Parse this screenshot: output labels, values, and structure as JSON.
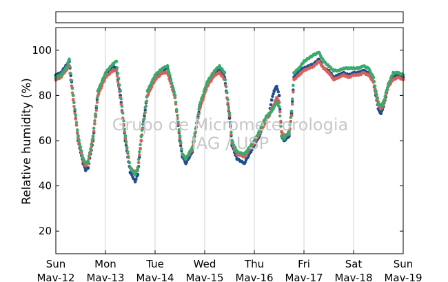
{
  "chart_data": {
    "type": "scatter",
    "title": "",
    "xlabel": "",
    "ylabel": "Relative humidity (%)",
    "ylim": [
      10,
      110
    ],
    "y_ticks": [
      20,
      40,
      60,
      80,
      100
    ],
    "xlim": [
      0,
      7
    ],
    "x_ticks": [
      {
        "x": 0,
        "day": "Sun",
        "date": "Mav-12"
      },
      {
        "x": 1,
        "day": "Mon",
        "date": "Mav-13"
      },
      {
        "x": 2,
        "day": "Tue",
        "date": "Mav-14"
      },
      {
        "x": 3,
        "day": "Wed",
        "date": "Mav-15"
      },
      {
        "x": 4,
        "day": "Thu",
        "date": "Mav-16"
      },
      {
        "x": 5,
        "day": "Fri",
        "date": "Mav-17"
      },
      {
        "x": 6,
        "day": "Sat",
        "date": "Mav-18"
      },
      {
        "x": 7,
        "day": "Sun",
        "date": "Mav-19"
      }
    ],
    "grid": "vertical",
    "legend": "top (empty box)",
    "watermark": [
      "Grupo de Micrometeorologia",
      "IAG / USP"
    ],
    "series": [
      {
        "color": "#1f4e8c",
        "x": [
          0.0,
          0.1,
          0.2,
          0.27,
          0.35,
          0.45,
          0.55,
          0.6,
          0.65,
          0.75,
          0.85,
          1.0,
          1.15,
          1.22,
          1.3,
          1.4,
          1.5,
          1.6,
          1.65,
          1.72,
          1.85,
          2.0,
          2.15,
          2.25,
          2.4,
          2.5,
          2.55,
          2.62,
          2.75,
          2.9,
          3.05,
          3.2,
          3.3,
          3.4,
          3.5,
          3.55,
          3.65,
          3.8,
          4.0,
          4.1,
          4.2,
          4.25,
          4.3,
          4.35,
          4.4,
          4.45,
          4.5,
          4.55,
          4.6,
          4.7,
          4.75,
          4.8,
          4.9,
          5.0,
          5.2,
          5.3,
          5.4,
          5.5,
          5.6,
          5.7,
          5.8,
          5.9,
          6.0,
          6.1,
          6.2,
          6.3,
          6.4,
          6.45,
          6.5,
          6.55,
          6.6,
          6.7,
          6.8,
          6.9,
          7.0
        ],
        "y": [
          89,
          90,
          93,
          95,
          80,
          60,
          50,
          47,
          48,
          60,
          82,
          89,
          93,
          92,
          80,
          60,
          46,
          42,
          45,
          60,
          82,
          88,
          91,
          92,
          80,
          60,
          53,
          50,
          55,
          75,
          85,
          90,
          92,
          88,
          70,
          58,
          52,
          50,
          58,
          62,
          68,
          70,
          72,
          78,
          82,
          84,
          80,
          62,
          60,
          62,
          72,
          88,
          91,
          92,
          94,
          96,
          92,
          91,
          88,
          89,
          90,
          89,
          90,
          90,
          91,
          90,
          86,
          80,
          74,
          72,
          75,
          84,
          88,
          89,
          88
        ]
      },
      {
        "color": "#d9605a",
        "x": [
          0.0,
          0.1,
          0.2,
          0.27,
          0.35,
          0.45,
          0.55,
          0.6,
          0.65,
          0.75,
          0.85,
          1.0,
          1.15,
          1.22,
          1.3,
          1.4,
          1.5,
          1.6,
          1.65,
          1.72,
          1.85,
          2.0,
          2.15,
          2.25,
          2.4,
          2.5,
          2.55,
          2.62,
          2.75,
          2.9,
          3.05,
          3.2,
          3.3,
          3.4,
          3.5,
          3.55,
          3.65,
          3.8,
          4.0,
          4.1,
          4.2,
          4.25,
          4.3,
          4.35,
          4.4,
          4.45,
          4.5,
          4.55,
          4.6,
          4.7,
          4.75,
          4.8,
          4.9,
          5.0,
          5.2,
          5.3,
          5.4,
          5.5,
          5.6,
          5.7,
          5.8,
          5.9,
          6.0,
          6.1,
          6.2,
          6.3,
          6.4,
          6.45,
          6.5,
          6.55,
          6.6,
          6.7,
          6.8,
          6.9,
          7.0
        ],
        "y": [
          87,
          88,
          91,
          93,
          78,
          61,
          51,
          49,
          50,
          61,
          80,
          88,
          91,
          91,
          79,
          61,
          48,
          46,
          47,
          60,
          80,
          87,
          90,
          90,
          79,
          61,
          54,
          52,
          56,
          74,
          84,
          89,
          90,
          87,
          71,
          59,
          54,
          53,
          59,
          63,
          67,
          70,
          71,
          74,
          76,
          79,
          77,
          64,
          62,
          63,
          71,
          87,
          89,
          91,
          93,
          95,
          92,
          90,
          87,
          88,
          89,
          88,
          89,
          89,
          90,
          89,
          86,
          81,
          76,
          74,
          76,
          84,
          87,
          88,
          87
        ]
      },
      {
        "color": "#3aaa6a",
        "x": [
          0.0,
          0.1,
          0.2,
          0.27,
          0.35,
          0.45,
          0.55,
          0.6,
          0.65,
          0.75,
          0.85,
          1.0,
          1.15,
          1.22,
          1.3,
          1.4,
          1.5,
          1.6,
          1.65,
          1.72,
          1.85,
          2.0,
          2.15,
          2.25,
          2.4,
          2.5,
          2.55,
          2.62,
          2.75,
          2.9,
          3.05,
          3.2,
          3.3,
          3.4,
          3.5,
          3.55,
          3.65,
          3.8,
          4.0,
          4.1,
          4.2,
          4.25,
          4.3,
          4.35,
          4.4,
          4.45,
          4.5,
          4.55,
          4.6,
          4.7,
          4.75,
          4.8,
          4.9,
          5.0,
          5.2,
          5.3,
          5.4,
          5.5,
          5.6,
          5.7,
          5.8,
          5.9,
          6.0,
          6.1,
          6.2,
          6.3,
          6.4,
          6.45,
          6.5,
          6.55,
          6.6,
          6.7,
          6.8,
          6.9,
          7.0
        ],
        "y": [
          88,
          89,
          92,
          96,
          80,
          62,
          52,
          50,
          51,
          62,
          82,
          90,
          94,
          95,
          82,
          62,
          48,
          45,
          48,
          62,
          82,
          89,
          92,
          93,
          80,
          62,
          54,
          52,
          57,
          76,
          86,
          91,
          93,
          90,
          72,
          60,
          55,
          54,
          60,
          64,
          69,
          71,
          72,
          73,
          75,
          77,
          75,
          62,
          61,
          64,
          73,
          90,
          92,
          95,
          98,
          99,
          95,
          93,
          91,
          91,
          92,
          92,
          92,
          92,
          93,
          92,
          88,
          82,
          77,
          75,
          77,
          85,
          90,
          90,
          89
        ]
      }
    ]
  }
}
